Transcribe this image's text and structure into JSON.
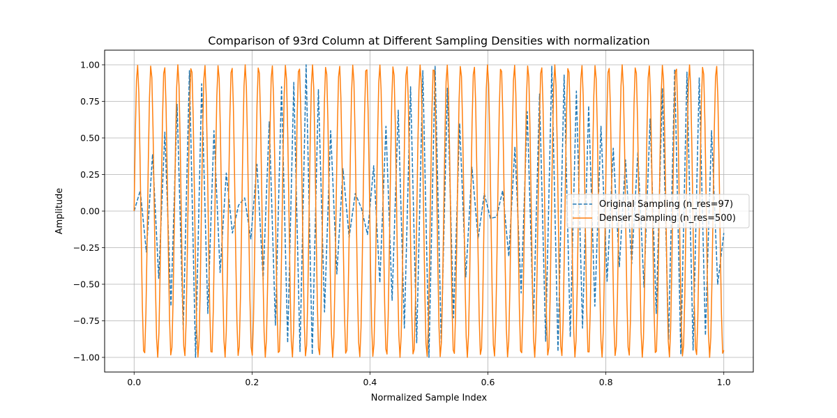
{
  "chart_data": {
    "type": "line",
    "title": "Comparison of 93rd Column at Different Sampling Densities with normalization",
    "xlabel": "Normalized Sample Index",
    "ylabel": "Amplitude",
    "xlim": [
      -0.05,
      1.05
    ],
    "ylim": [
      -1.1,
      1.1
    ],
    "xticks": [
      0.0,
      0.2,
      0.4,
      0.6,
      0.8,
      1.0
    ],
    "xtick_labels": [
      "0.0",
      "0.2",
      "0.4",
      "0.6",
      "0.8",
      "1.0"
    ],
    "yticks": [
      -1.0,
      -0.75,
      -0.5,
      -0.25,
      0.0,
      0.25,
      0.5,
      0.75,
      1.0
    ],
    "ytick_labels": [
      "−1.00",
      "−0.75",
      "−0.50",
      "−0.25",
      "0.00",
      "0.25",
      "0.50",
      "0.75",
      "1.00"
    ],
    "grid": true,
    "legend_position": "center-right",
    "series": [
      {
        "name": "Original Sampling (n_res=97)",
        "color": "#1f77b4",
        "style": "dashed",
        "x": [
          0.0,
          0.0104,
          0.0208,
          0.0313,
          0.0417,
          0.0521,
          0.0625,
          0.0729,
          0.0833,
          0.0938,
          0.1042,
          0.1146,
          0.125,
          0.1354,
          0.1458,
          0.1563,
          0.1667,
          0.1771,
          0.1875,
          0.1979,
          0.2083,
          0.2188,
          0.2292,
          0.2396,
          0.25,
          0.2604,
          0.2708,
          0.2813,
          0.2917,
          0.3021,
          0.3125,
          0.3229,
          0.3333,
          0.3438,
          0.3542,
          0.3646,
          0.375,
          0.3854,
          0.3958,
          0.4063,
          0.4167,
          0.4271,
          0.4375,
          0.4479,
          0.4583,
          0.4688,
          0.4792,
          0.4896,
          0.5,
          0.5104,
          0.5208,
          0.5313,
          0.5417,
          0.5521,
          0.5625,
          0.5729,
          0.5833,
          0.5938,
          0.6042,
          0.6146,
          0.625,
          0.6354,
          0.6458,
          0.6563,
          0.6667,
          0.6771,
          0.6875,
          0.6979,
          0.7083,
          0.7188,
          0.7292,
          0.7396,
          0.75,
          0.7604,
          0.7708,
          0.7813,
          0.7917,
          0.8021,
          0.8125,
          0.8229,
          0.8333,
          0.8438,
          0.8542,
          0.8646,
          0.875,
          0.8854,
          0.8958,
          0.9063,
          0.9167,
          0.9271,
          0.9375,
          0.9479,
          0.9583,
          0.9688,
          0.9792,
          0.9896,
          1.0
        ],
        "y": [
          0.0,
          0.14,
          -0.28,
          0.39,
          -0.46,
          0.54,
          -0.65,
          0.73,
          -0.81,
          0.96,
          -1.0,
          0.87,
          -0.7,
          0.55,
          -0.42,
          0.26,
          -0.15,
          0.04,
          0.09,
          -0.19,
          0.32,
          -0.47,
          0.61,
          -0.78,
          0.85,
          -0.9,
          0.88,
          -0.96,
          1.0,
          -0.98,
          0.83,
          -0.69,
          0.55,
          -0.43,
          0.29,
          -0.18,
          0.12,
          0.02,
          -0.16,
          0.31,
          -0.49,
          0.58,
          -0.61,
          0.69,
          -0.8,
          0.85,
          -0.9,
          0.96,
          -1.0,
          0.99,
          -0.9,
          0.84,
          -0.73,
          0.6,
          -0.45,
          0.3,
          -0.19,
          0.12,
          -0.05,
          -0.04,
          0.14,
          -0.31,
          0.44,
          -0.56,
          0.68,
          -0.76,
          0.8,
          -0.89,
          0.99,
          -0.96,
          0.93,
          -0.86,
          0.82,
          -0.8,
          0.72,
          -0.65,
          0.58,
          -0.48,
          0.43,
          -0.38,
          0.35,
          -0.36,
          0.4,
          -0.52,
          0.63,
          -0.7,
          0.84,
          -0.88,
          0.97,
          -0.98,
          0.95,
          -0.95,
          0.91,
          -0.85,
          0.55,
          -0.5,
          -0.15
        ]
      },
      {
        "name": "Denser Sampling (n_res=500)",
        "color": "#ff7f0e",
        "style": "solid",
        "cycles": 43.8,
        "amplitude": 1.0,
        "x_range": [
          0.0,
          1.0
        ]
      }
    ]
  }
}
